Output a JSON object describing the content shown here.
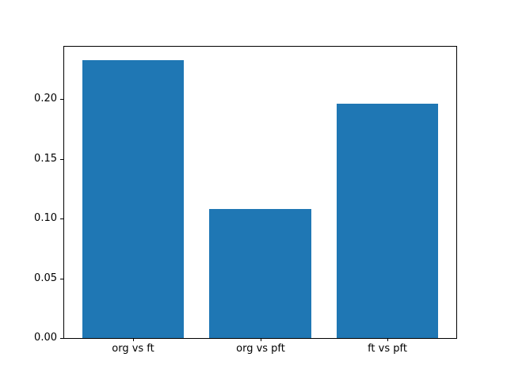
{
  "figure": {
    "background": "#ffffff"
  },
  "chart_data": {
    "type": "bar",
    "title": "",
    "xlabel": "",
    "ylabel": "",
    "categories": [
      "org vs ft",
      "org vs pft",
      "ft vs pft"
    ],
    "values": [
      0.233,
      0.108,
      0.196
    ],
    "bar_color": "#1f77b4",
    "bar_width": 0.8,
    "xlim": [
      -0.54,
      2.54
    ],
    "ylim": [
      0,
      0.244
    ],
    "yticks": [
      0,
      0.05,
      0.1,
      0.15,
      0.2
    ],
    "ytick_labels": [
      "0.00",
      "0.05",
      "0.10",
      "0.15",
      "0.20"
    ],
    "grid": false,
    "legend": "none"
  }
}
